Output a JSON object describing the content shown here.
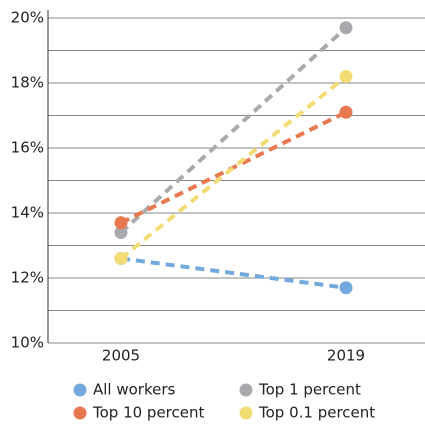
{
  "chart_data": {
    "type": "line",
    "categories": [
      "2005",
      "2019"
    ],
    "series": [
      {
        "name": "All workers",
        "color": "#74a9dd",
        "values": [
          12.6,
          11.7
        ]
      },
      {
        "name": "Top 1 percent",
        "color": "#a9aaad",
        "values": [
          13.4,
          19.7
        ]
      },
      {
        "name": "Top 10 percent",
        "color": "#e8784f",
        "values": [
          13.7,
          17.1
        ]
      },
      {
        "name": "Top 0.1 percent",
        "color": "#f4dc74",
        "values": [
          12.6,
          18.2
        ]
      }
    ],
    "ylim": [
      10,
      20
    ],
    "yticks": [
      {
        "value": 10,
        "label": "10%"
      },
      {
        "value": 12,
        "label": "12%"
      },
      {
        "value": 14,
        "label": "14%"
      },
      {
        "value": 16,
        "label": "16%"
      },
      {
        "value": 18,
        "label": "18%"
      },
      {
        "value": 20,
        "label": "20%"
      }
    ],
    "minor_yticks": [
      11,
      13,
      15,
      17,
      19
    ],
    "grid": true,
    "line_style": "dashed",
    "legend": "bottom"
  }
}
